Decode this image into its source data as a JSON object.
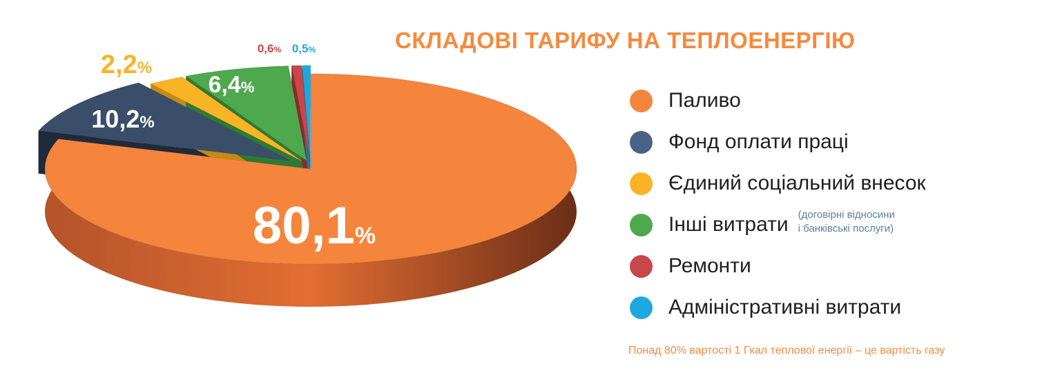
{
  "title": "СКЛАДОВІ ТАРИФУ НА ТЕПЛОЕНЕРГІЮ",
  "chart_data": {
    "type": "pie",
    "categories": [
      "Паливо",
      "Фонд оплати праці",
      "Єдиний соціальний внесок",
      "Інші витрати",
      "Ремонти",
      "Адміністративні витрати"
    ],
    "values": [
      80.1,
      10.2,
      2.2,
      6.4,
      0.6,
      0.5
    ],
    "value_labels": [
      {
        "num": "80,1",
        "unit": "%"
      },
      {
        "num": "10,2",
        "unit": "%"
      },
      {
        "num": "2,2",
        "unit": "%"
      },
      {
        "num": "6,4",
        "unit": "%"
      },
      {
        "num": "0,6",
        "unit": "%"
      },
      {
        "num": "0,5",
        "unit": "%"
      }
    ],
    "colors": [
      "#F5843C",
      "#3A4E6A",
      "#F9B425",
      "#4EA84E",
      "#C8474A",
      "#1EA8DF"
    ],
    "legend_placement": "right"
  },
  "legend_note": [
    "(договірні відносини",
    "і банківські послуги)"
  ],
  "footnote": "Понад 80% вартості 1 Гкал теплової енергії – це вартість газу"
}
